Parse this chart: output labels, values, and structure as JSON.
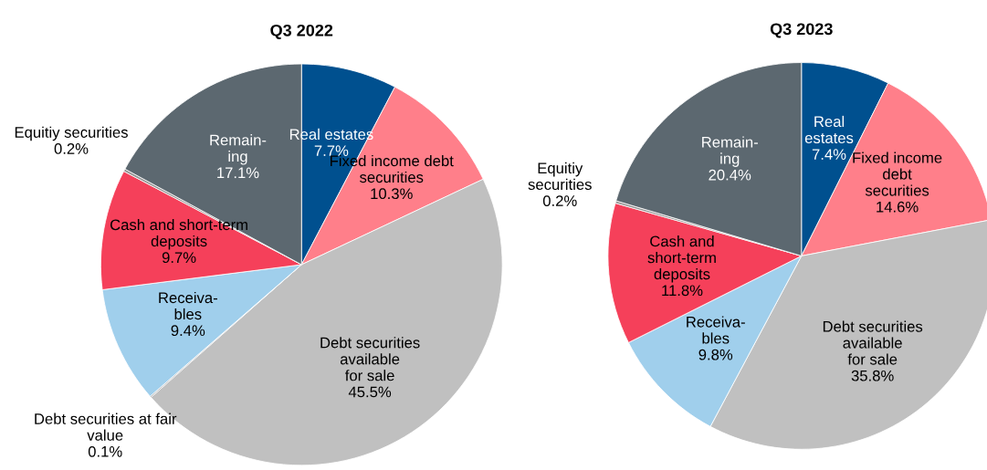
{
  "chart_data": [
    {
      "type": "pie",
      "title": "Q3 2022",
      "categories": [
        "Real estates",
        "Fixed income debt\nsecurities",
        "Debt securities\navailable\nfor sale",
        "Debt securities at fair\nvalue",
        "Receiva-\nbles",
        "Cash and short-term\ndeposits",
        "Equitiy securities",
        "Remain-\ning"
      ],
      "values": [
        7.7,
        10.3,
        45.5,
        0.1,
        9.4,
        9.7,
        0.2,
        17.1
      ],
      "colors": [
        "#00508f",
        "#ff7f8a",
        "#c0c0c0",
        "#a0a0a0",
        "#a0cfec",
        "#f5405a",
        "#909090",
        "#5c6870"
      ],
      "value_labels": [
        "7.7%",
        "10.3%",
        "45.5%",
        "0.1%",
        "9.4%",
        "9.7%",
        "0.2%",
        "17.1%"
      ]
    },
    {
      "type": "pie",
      "title": "Q3 2023",
      "categories": [
        "Real\nestates",
        "Fixed income\ndebt\nsecurities",
        "Debt securities\navailable\nfor sale",
        "Receiva-\nbles",
        "Cash and\nshort-term\ndeposits",
        "Equitiy\nsecurities",
        "Remain-\ning"
      ],
      "values": [
        7.4,
        14.6,
        35.8,
        9.8,
        11.8,
        0.2,
        20.4
      ],
      "colors": [
        "#00508f",
        "#ff7f8a",
        "#c0c0c0",
        "#a0cfec",
        "#f5405a",
        "#909090",
        "#5c6870"
      ],
      "value_labels": [
        "7.4%",
        "14.6%",
        "35.8%",
        "9.8%",
        "11.8%",
        "0.2%",
        "20.4%"
      ]
    }
  ]
}
